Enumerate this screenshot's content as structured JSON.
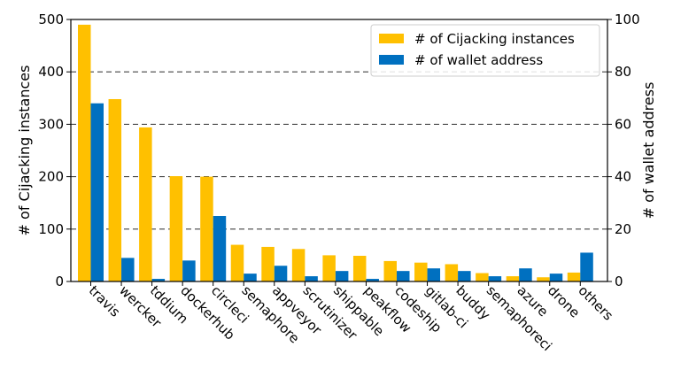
{
  "chart_data": {
    "type": "bar",
    "categories": [
      "travis",
      "wercker",
      "tddium",
      "dockerhub",
      "circleci",
      "semaphore",
      "appveyor",
      "scrutinizer",
      "shippable",
      "peakflow",
      "codeship",
      "gitlab-ci",
      "buddy",
      "semaphoreci",
      "azure",
      "drone",
      "others"
    ],
    "series": [
      {
        "name": "# of Cijacking instances",
        "axis": "left",
        "color": "#ffc000",
        "values": [
          490,
          348,
          294,
          201,
          200,
          70,
          66,
          62,
          50,
          49,
          39,
          36,
          33,
          16,
          10,
          8,
          17
        ]
      },
      {
        "name": "# of wallet address",
        "axis": "right",
        "color": "#0070c0",
        "values": [
          68,
          9,
          1,
          8,
          25,
          3,
          6,
          2,
          4,
          1,
          4,
          5,
          4,
          2,
          5,
          3,
          11
        ]
      }
    ],
    "ylabel": "# of Cijacking instances",
    "ylim": [
      0,
      500
    ],
    "yticks": [
      0,
      100,
      200,
      300,
      400,
      500
    ],
    "y2label": "# of wallet address",
    "y2lim": [
      0,
      100
    ],
    "y2ticks": [
      0,
      20,
      40,
      60,
      80,
      100
    ],
    "grid": "horizontal-dashed",
    "legend": "top-right"
  }
}
